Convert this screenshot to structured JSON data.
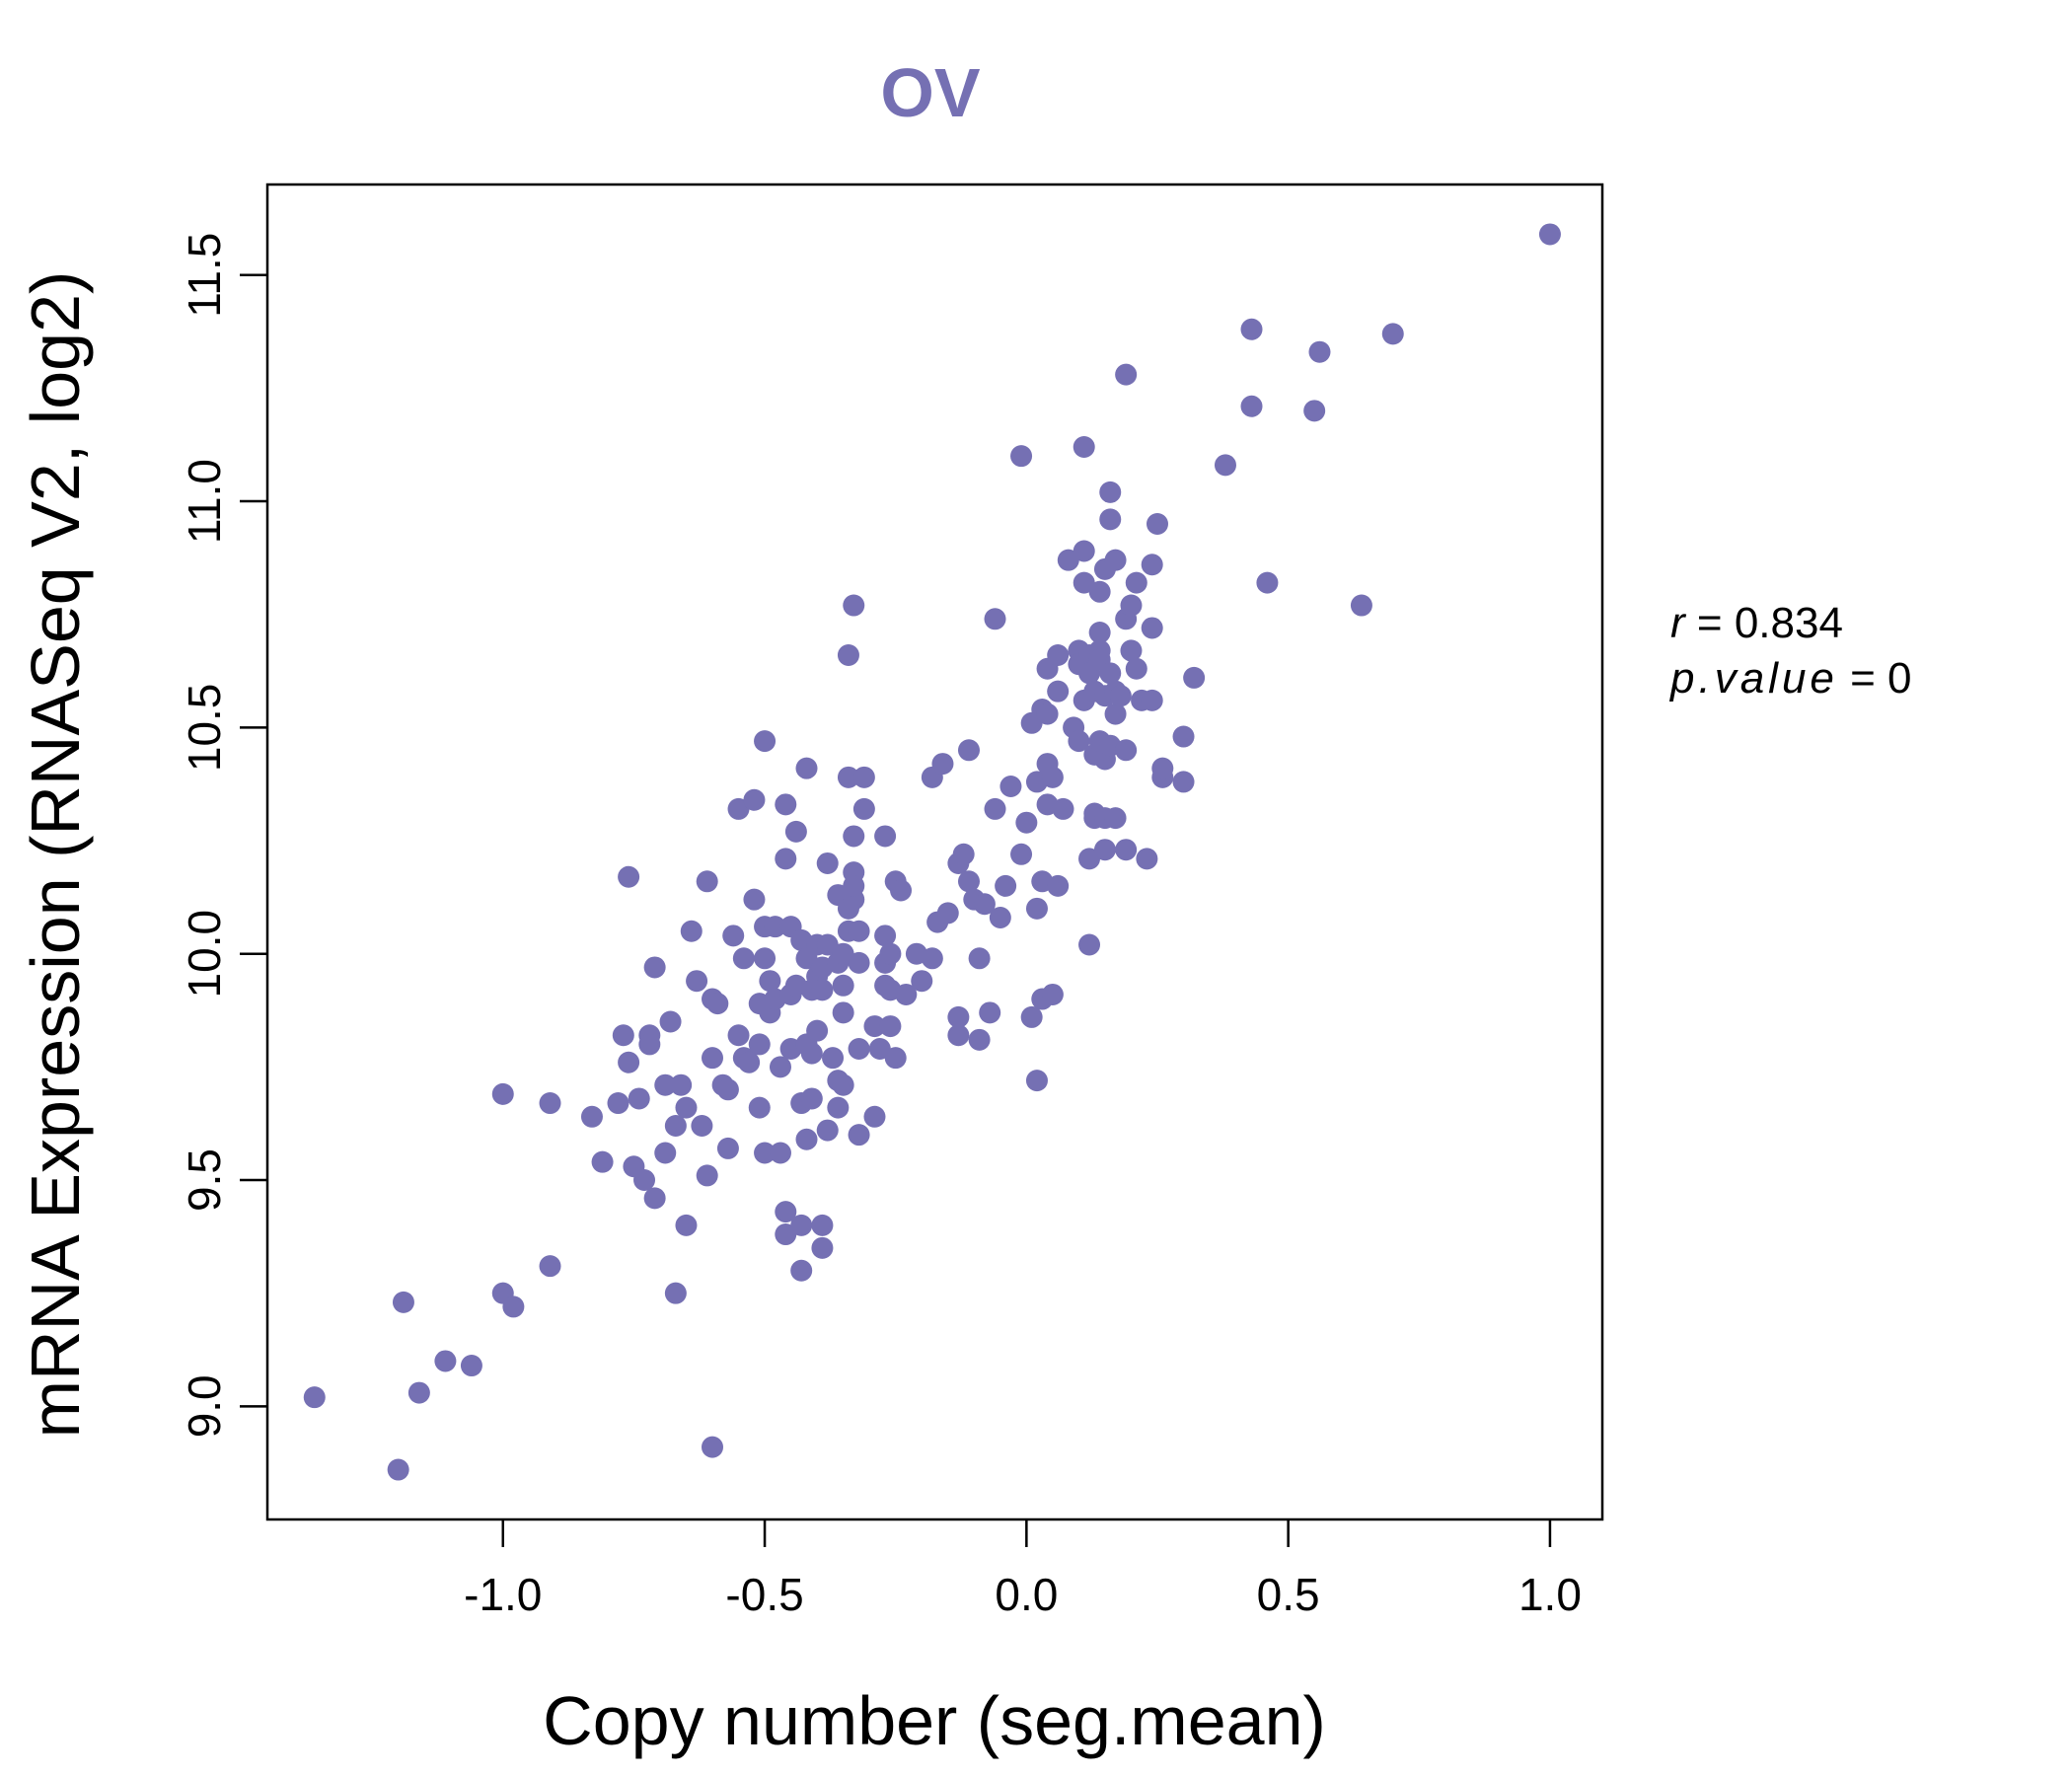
{
  "chart_data": {
    "type": "scatter",
    "title": "OV",
    "xlabel": "Copy number (seg.mean)",
    "ylabel": "mRNA Expression (RNASeq V2, log2)",
    "xlim": [
      -1.45,
      1.1
    ],
    "ylim": [
      8.75,
      11.7
    ],
    "xticks": [
      -1.0,
      -0.5,
      0.0,
      0.5,
      1.0
    ],
    "xtick_labels": [
      "-1.0",
      "-0.5",
      "0.0",
      "0.5",
      "1.0"
    ],
    "yticks": [
      9.0,
      9.5,
      10.0,
      10.5,
      11.0,
      11.5
    ],
    "ytick_labels": [
      "9.0",
      "9.5",
      "10.0",
      "10.5",
      "11.0",
      "11.5"
    ],
    "grid": false,
    "point_color": "#7570b3",
    "stats": {
      "r_label": "r",
      "r_value": "0.834",
      "p_label": "p.value",
      "p_value": "0"
    },
    "points": [
      [
        -1.36,
        9.02
      ],
      [
        -1.2,
        8.86
      ],
      [
        -1.19,
        9.23
      ],
      [
        -1.16,
        9.03
      ],
      [
        -1.11,
        9.1
      ],
      [
        -1.06,
        9.09
      ],
      [
        -1.0,
        9.25
      ],
      [
        -1.0,
        9.69
      ],
      [
        -0.98,
        9.22
      ],
      [
        -0.91,
        9.31
      ],
      [
        -0.91,
        9.67
      ],
      [
        -0.83,
        9.64
      ],
      [
        -0.81,
        9.54
      ],
      [
        -0.78,
        9.67
      ],
      [
        -0.77,
        9.82
      ],
      [
        -0.76,
        9.76
      ],
      [
        -0.76,
        10.17
      ],
      [
        -0.75,
        9.53
      ],
      [
        -0.74,
        9.68
      ],
      [
        -0.73,
        9.5
      ],
      [
        -0.72,
        9.82
      ],
      [
        -0.72,
        9.8
      ],
      [
        -0.71,
        9.46
      ],
      [
        -0.71,
        9.97
      ],
      [
        -0.69,
        9.56
      ],
      [
        -0.69,
        9.71
      ],
      [
        -0.68,
        9.85
      ],
      [
        -0.67,
        9.25
      ],
      [
        -0.67,
        9.62
      ],
      [
        -0.66,
        9.71
      ],
      [
        -0.65,
        9.4
      ],
      [
        -0.65,
        9.66
      ],
      [
        -0.64,
        10.05
      ],
      [
        -0.63,
        9.94
      ],
      [
        -0.62,
        9.62
      ],
      [
        -0.61,
        9.51
      ],
      [
        -0.61,
        10.16
      ],
      [
        -0.6,
        9.77
      ],
      [
        -0.6,
        9.9
      ],
      [
        -0.6,
        8.91
      ],
      [
        -0.59,
        9.89
      ],
      [
        -0.58,
        9.71
      ],
      [
        -0.57,
        9.57
      ],
      [
        -0.57,
        9.7
      ],
      [
        -0.56,
        10.04
      ],
      [
        -0.55,
        10.32
      ],
      [
        -0.55,
        9.82
      ],
      [
        -0.54,
        9.77
      ],
      [
        -0.54,
        9.99
      ],
      [
        -0.53,
        9.76
      ],
      [
        -0.52,
        10.34
      ],
      [
        -0.52,
        10.12
      ],
      [
        -0.51,
        9.66
      ],
      [
        -0.51,
        9.89
      ],
      [
        -0.51,
        9.8
      ],
      [
        -0.5,
        10.47
      ],
      [
        -0.5,
        10.06
      ],
      [
        -0.5,
        9.99
      ],
      [
        -0.5,
        9.56
      ],
      [
        -0.49,
        9.94
      ],
      [
        -0.49,
        9.87
      ],
      [
        -0.48,
        10.06
      ],
      [
        -0.48,
        9.9
      ],
      [
        -0.47,
        9.56
      ],
      [
        -0.47,
        9.75
      ],
      [
        -0.46,
        9.38
      ],
      [
        -0.46,
        9.43
      ],
      [
        -0.46,
        10.21
      ],
      [
        -0.46,
        10.33
      ],
      [
        -0.45,
        9.91
      ],
      [
        -0.45,
        9.79
      ],
      [
        -0.45,
        10.06
      ],
      [
        -0.44,
        10.27
      ],
      [
        -0.44,
        9.93
      ],
      [
        -0.43,
        9.4
      ],
      [
        -0.43,
        9.3
      ],
      [
        -0.43,
        9.67
      ],
      [
        -0.43,
        10.03
      ],
      [
        -0.42,
        9.59
      ],
      [
        -0.42,
        10.41
      ],
      [
        -0.42,
        9.99
      ],
      [
        -0.42,
        9.8
      ],
      [
        -0.41,
        9.78
      ],
      [
        -0.41,
        9.92
      ],
      [
        -0.41,
        9.68
      ],
      [
        -0.4,
        10.02
      ],
      [
        -0.4,
        9.95
      ],
      [
        -0.4,
        9.83
      ],
      [
        -0.39,
        9.97
      ],
      [
        -0.39,
        9.4
      ],
      [
        -0.39,
        9.35
      ],
      [
        -0.39,
        9.92
      ],
      [
        -0.38,
        10.2
      ],
      [
        -0.38,
        9.61
      ],
      [
        -0.38,
        10.02
      ],
      [
        -0.37,
        9.77
      ],
      [
        -0.36,
        10.13
      ],
      [
        -0.36,
        9.98
      ],
      [
        -0.36,
        9.72
      ],
      [
        -0.36,
        9.66
      ],
      [
        -0.35,
        10.0
      ],
      [
        -0.35,
        9.71
      ],
      [
        -0.35,
        9.87
      ],
      [
        -0.35,
        9.93
      ],
      [
        -0.34,
        10.05
      ],
      [
        -0.34,
        10.1
      ],
      [
        -0.34,
        10.39
      ],
      [
        -0.34,
        10.66
      ],
      [
        -0.33,
        10.77
      ],
      [
        -0.33,
        10.26
      ],
      [
        -0.33,
        10.18
      ],
      [
        -0.33,
        10.12
      ],
      [
        -0.33,
        10.15
      ],
      [
        -0.32,
        10.05
      ],
      [
        -0.32,
        9.98
      ],
      [
        -0.32,
        9.6
      ],
      [
        -0.32,
        9.79
      ],
      [
        -0.31,
        10.39
      ],
      [
        -0.31,
        10.32
      ],
      [
        -0.29,
        9.84
      ],
      [
        -0.29,
        9.64
      ],
      [
        -0.28,
        9.79
      ],
      [
        -0.27,
        10.04
      ],
      [
        -0.27,
        9.98
      ],
      [
        -0.27,
        10.26
      ],
      [
        -0.27,
        9.93
      ],
      [
        -0.26,
        9.92
      ],
      [
        -0.26,
        10.0
      ],
      [
        -0.26,
        9.84
      ],
      [
        -0.25,
        10.16
      ],
      [
        -0.25,
        9.77
      ],
      [
        -0.24,
        10.14
      ],
      [
        -0.23,
        9.91
      ],
      [
        -0.21,
        10.0
      ],
      [
        -0.2,
        9.94
      ],
      [
        -0.18,
        9.99
      ],
      [
        -0.18,
        10.39
      ],
      [
        -0.17,
        10.07
      ],
      [
        -0.16,
        10.42
      ],
      [
        -0.15,
        10.09
      ],
      [
        -0.13,
        10.2
      ],
      [
        -0.13,
        9.86
      ],
      [
        -0.13,
        9.82
      ],
      [
        -0.12,
        10.22
      ],
      [
        -0.11,
        10.45
      ],
      [
        -0.11,
        10.16
      ],
      [
        -0.1,
        10.12
      ],
      [
        -0.09,
        9.99
      ],
      [
        -0.09,
        9.81
      ],
      [
        -0.08,
        10.11
      ],
      [
        -0.07,
        9.87
      ],
      [
        -0.06,
        10.32
      ],
      [
        -0.06,
        10.74
      ],
      [
        -0.05,
        10.08
      ],
      [
        -0.04,
        10.15
      ],
      [
        -0.03,
        10.37
      ],
      [
        -0.01,
        11.1
      ],
      [
        -0.01,
        10.22
      ],
      [
        0.0,
        10.29
      ],
      [
        0.01,
        10.51
      ],
      [
        0.01,
        9.86
      ],
      [
        0.02,
        10.38
      ],
      [
        0.02,
        9.72
      ],
      [
        0.02,
        10.1
      ],
      [
        0.03,
        9.9
      ],
      [
        0.03,
        10.16
      ],
      [
        0.03,
        10.54
      ],
      [
        0.04,
        10.63
      ],
      [
        0.04,
        10.42
      ],
      [
        0.04,
        10.53
      ],
      [
        0.04,
        10.33
      ],
      [
        0.05,
        9.91
      ],
      [
        0.05,
        10.39
      ],
      [
        0.06,
        10.58
      ],
      [
        0.06,
        10.15
      ],
      [
        0.06,
        10.66
      ],
      [
        0.07,
        10.32
      ],
      [
        0.08,
        10.87
      ],
      [
        0.09,
        10.5
      ],
      [
        0.1,
        10.67
      ],
      [
        0.1,
        10.47
      ],
      [
        0.1,
        10.64
      ],
      [
        0.11,
        11.12
      ],
      [
        0.11,
        10.82
      ],
      [
        0.11,
        10.89
      ],
      [
        0.11,
        10.56
      ],
      [
        0.12,
        10.21
      ],
      [
        0.12,
        10.02
      ],
      [
        0.12,
        10.66
      ],
      [
        0.12,
        10.62
      ],
      [
        0.13,
        10.3
      ],
      [
        0.13,
        10.44
      ],
      [
        0.13,
        10.58
      ],
      [
        0.13,
        10.31
      ],
      [
        0.14,
        10.71
      ],
      [
        0.14,
        10.8
      ],
      [
        0.14,
        10.67
      ],
      [
        0.14,
        10.47
      ],
      [
        0.14,
        10.65
      ],
      [
        0.15,
        10.43
      ],
      [
        0.15,
        10.57
      ],
      [
        0.15,
        10.85
      ],
      [
        0.15,
        10.3
      ],
      [
        0.15,
        10.23
      ],
      [
        0.16,
        11.02
      ],
      [
        0.16,
        10.96
      ],
      [
        0.16,
        10.62
      ],
      [
        0.16,
        10.46
      ],
      [
        0.17,
        10.87
      ],
      [
        0.17,
        10.3
      ],
      [
        0.17,
        10.58
      ],
      [
        0.17,
        10.53
      ],
      [
        0.18,
        10.57
      ],
      [
        0.19,
        10.23
      ],
      [
        0.19,
        10.45
      ],
      [
        0.19,
        10.74
      ],
      [
        0.19,
        11.28
      ],
      [
        0.2,
        10.77
      ],
      [
        0.2,
        10.67
      ],
      [
        0.21,
        10.63
      ],
      [
        0.21,
        10.82
      ],
      [
        0.22,
        10.56
      ],
      [
        0.23,
        10.21
      ],
      [
        0.24,
        10.72
      ],
      [
        0.24,
        10.86
      ],
      [
        0.24,
        10.56
      ],
      [
        0.25,
        10.95
      ],
      [
        0.26,
        10.39
      ],
      [
        0.26,
        10.41
      ],
      [
        0.3,
        10.48
      ],
      [
        0.3,
        10.38
      ],
      [
        0.32,
        10.61
      ],
      [
        0.38,
        11.08
      ],
      [
        0.43,
        11.21
      ],
      [
        0.43,
        11.38
      ],
      [
        0.46,
        10.82
      ],
      [
        0.55,
        11.2
      ],
      [
        0.56,
        11.33
      ],
      [
        0.64,
        10.77
      ],
      [
        0.7,
        11.37
      ],
      [
        1.0,
        11.59
      ]
    ]
  }
}
